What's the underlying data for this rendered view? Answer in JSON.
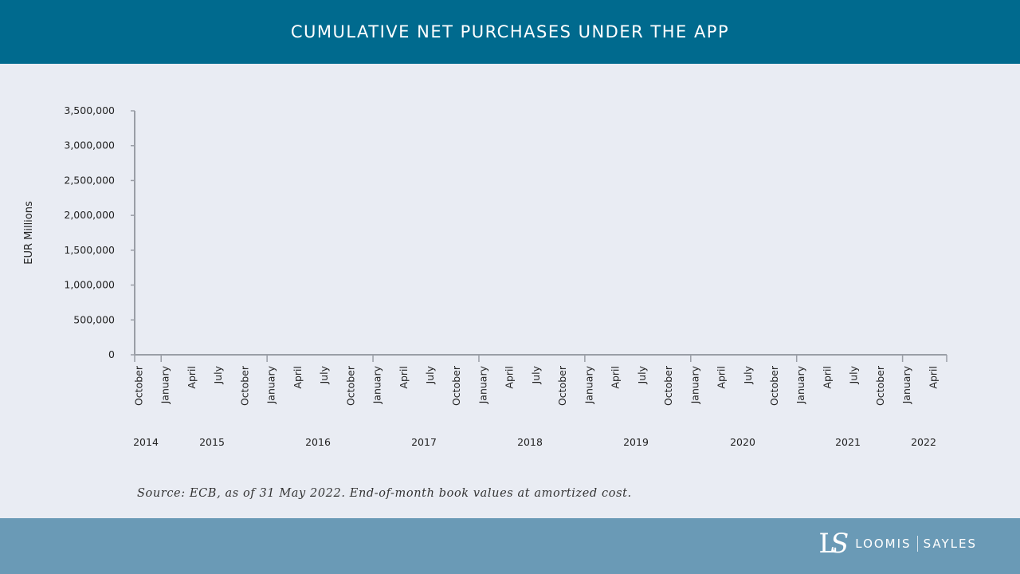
{
  "header": {
    "title": "CUMULATIVE NET PURCHASES UNDER THE APP"
  },
  "footer": {
    "logo_monogram": "LS",
    "logo_left": "LOOMIS",
    "logo_right": "SAYLES"
  },
  "source": "Source: ECB, as of 31 May 2022. End-of-month book values at amortized cost.",
  "colors": {
    "header": "#006a8e",
    "footer": "#6a9ab6",
    "background": "#e9ecf3",
    "axis": "#9a9ea6"
  },
  "chart_data": {
    "type": "line",
    "title": "CUMULATIVE NET PURCHASES UNDER THE APP",
    "ylabel": "EUR Millions",
    "xlabel": "",
    "ylim": [
      0,
      3500000
    ],
    "yticks": [
      "0",
      "500,000",
      "1,000,000",
      "1,500,000",
      "2,000,000",
      "2,500,000",
      "3,000,000",
      "3,500,000"
    ],
    "xrange": [
      "2014-10",
      "2022-05"
    ],
    "month_labels": [
      "October",
      "January",
      "April",
      "July",
      "October",
      "January",
      "April",
      "July",
      "October",
      "January",
      "April",
      "July",
      "October",
      "January",
      "April",
      "July",
      "October",
      "January",
      "April",
      "July",
      "October",
      "January",
      "April",
      "July",
      "October",
      "January",
      "April",
      "July",
      "October",
      "January",
      "April"
    ],
    "year_labels": [
      "2014",
      "2015",
      "2016",
      "2017",
      "2018",
      "2019",
      "2020",
      "2021",
      "2022"
    ],
    "grid": false,
    "series": []
  }
}
